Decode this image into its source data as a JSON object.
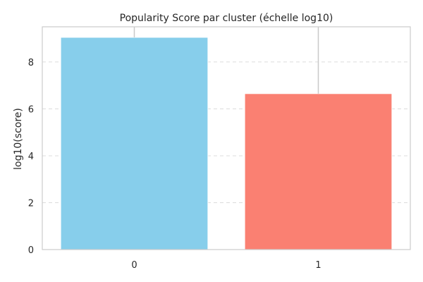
{
  "chart_data": {
    "type": "bar",
    "title": "Popularity Score par cluster (échelle log10)",
    "xlabel": "",
    "ylabel": "log10(score)",
    "categories": [
      "0",
      "1"
    ],
    "values": [
      9.05,
      6.65
    ],
    "error_upper": [
      9.8,
      9.8
    ],
    "colors": [
      "#87CEEB",
      "#FA8072"
    ],
    "ylim": [
      0,
      9.5
    ],
    "yticks": [
      0,
      2,
      4,
      6,
      8
    ],
    "grid": "y-dashed",
    "legend": "none"
  }
}
